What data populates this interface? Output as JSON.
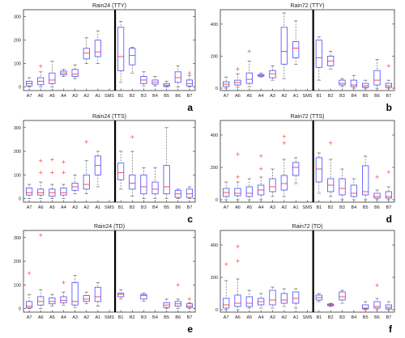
{
  "chart_data": [
    {
      "type": "box",
      "title": "Rain24 (TTY)",
      "panel_label": "a",
      "yticks": [
        0,
        100,
        200,
        300
      ],
      "ylim": [
        -15,
        330
      ],
      "categories": [
        "A7",
        "A6",
        "A5",
        "A4",
        "A3",
        "A2",
        "A1",
        "SMS",
        "B1",
        "B2",
        "B3",
        "B4",
        "B5",
        "B6",
        "B7"
      ],
      "divider_after": "SMS",
      "boxes": [
        {
          "cat": "A7",
          "min": 0,
          "q1": 5,
          "med": 15,
          "q3": 25,
          "max": 40,
          "outliers": []
        },
        {
          "cat": "A6",
          "min": 0,
          "q1": 10,
          "med": 25,
          "q3": 40,
          "max": 65,
          "outliers": [
            90
          ]
        },
        {
          "cat": "A5",
          "min": 0,
          "q1": 15,
          "med": 30,
          "q3": 60,
          "max": 110,
          "outliers": []
        },
        {
          "cat": "A4",
          "min": 45,
          "q1": 52,
          "med": 60,
          "q3": 68,
          "max": 75,
          "outliers": []
        },
        {
          "cat": "A3",
          "min": 35,
          "q1": 45,
          "med": 55,
          "q3": 75,
          "max": 95,
          "outliers": []
        },
        {
          "cat": "A2",
          "min": 100,
          "q1": 120,
          "med": 145,
          "q3": 165,
          "max": 210,
          "outliers": []
        },
        {
          "cat": "A1",
          "min": 100,
          "q1": 130,
          "med": 150,
          "q3": 200,
          "max": 240,
          "outliers": []
        },
        null,
        {
          "cat": "B1",
          "min": 20,
          "q1": 70,
          "med": 130,
          "q3": 255,
          "max": 280,
          "outliers": []
        },
        {
          "cat": "B2",
          "min": 60,
          "q1": 95,
          "med": 135,
          "q3": 165,
          "max": 170,
          "outliers": []
        },
        {
          "cat": "B3",
          "min": 5,
          "q1": 15,
          "med": 30,
          "q3": 45,
          "max": 65,
          "outliers": []
        },
        {
          "cat": "B4",
          "min": 5,
          "q1": 12,
          "med": 20,
          "q3": 30,
          "max": 45,
          "outliers": []
        },
        {
          "cat": "B5",
          "min": 0,
          "q1": 3,
          "med": 8,
          "q3": 15,
          "max": 25,
          "outliers": []
        },
        {
          "cat": "B6",
          "min": 0,
          "q1": 20,
          "med": 40,
          "q3": 65,
          "max": 90,
          "outliers": []
        },
        {
          "cat": "B7",
          "min": 0,
          "q1": 5,
          "med": 15,
          "q3": 30,
          "max": 50,
          "outliers": [
            60
          ]
        }
      ]
    },
    {
      "type": "box",
      "title": "Rain72 (TTY)",
      "panel_label": "b",
      "yticks": [
        0,
        200,
        400
      ],
      "ylim": [
        -15,
        490
      ],
      "categories": [
        "A7",
        "A6",
        "A5",
        "A4",
        "A3",
        "A2",
        "A1",
        "SMS",
        "B1",
        "B2",
        "B3",
        "B4",
        "B5",
        "B6",
        "B7"
      ],
      "divider_after": "SMS",
      "boxes": [
        {
          "cat": "A7",
          "min": 0,
          "q1": 10,
          "med": 25,
          "q3": 40,
          "max": 70,
          "outliers": []
        },
        {
          "cat": "A6",
          "min": 5,
          "q1": 20,
          "med": 35,
          "q3": 50,
          "max": 90,
          "outliers": [
            120
          ]
        },
        {
          "cat": "A5",
          "min": 10,
          "q1": 30,
          "med": 55,
          "q3": 95,
          "max": 170,
          "outliers": [
            230
          ]
        },
        {
          "cat": "A4",
          "min": 70,
          "q1": 75,
          "med": 80,
          "q3": 85,
          "max": 95,
          "outliers": []
        },
        {
          "cat": "A3",
          "min": 50,
          "q1": 65,
          "med": 90,
          "q3": 110,
          "max": 140,
          "outliers": []
        },
        {
          "cat": "A2",
          "min": 60,
          "q1": 150,
          "med": 230,
          "q3": 380,
          "max": 470,
          "outliers": []
        },
        {
          "cat": "A1",
          "min": 150,
          "q1": 190,
          "med": 250,
          "q3": 290,
          "max": 420,
          "outliers": []
        },
        null,
        {
          "cat": "B1",
          "min": 50,
          "q1": 130,
          "med": 190,
          "q3": 300,
          "max": 320,
          "outliers": []
        },
        {
          "cat": "B2",
          "min": 120,
          "q1": 140,
          "med": 170,
          "q3": 200,
          "max": 230,
          "outliers": []
        },
        {
          "cat": "B3",
          "min": 10,
          "q1": 20,
          "med": 30,
          "q3": 50,
          "max": 60,
          "outliers": []
        },
        {
          "cat": "B4",
          "min": 0,
          "q1": 10,
          "med": 20,
          "q3": 50,
          "max": 80,
          "outliers": []
        },
        {
          "cat": "B5",
          "min": 0,
          "q1": 5,
          "med": 15,
          "q3": 30,
          "max": 50,
          "outliers": []
        },
        {
          "cat": "B6",
          "min": 0,
          "q1": 20,
          "med": 50,
          "q3": 110,
          "max": 180,
          "outliers": []
        },
        {
          "cat": "B7",
          "min": 0,
          "q1": 5,
          "med": 15,
          "q3": 30,
          "max": 50,
          "outliers": [
            140
          ]
        }
      ]
    },
    {
      "type": "box",
      "title": "Rain24 (TTS)",
      "panel_label": "c",
      "yticks": [
        0,
        100,
        200,
        300
      ],
      "ylim": [
        -15,
        330
      ],
      "categories": [
        "A7",
        "A6",
        "A5",
        "A4",
        "A3",
        "A2",
        "A1",
        "SMS",
        "B1",
        "B2",
        "B3",
        "B4",
        "B5",
        "B6",
        "B7"
      ],
      "divider_after": "SMS",
      "boxes": [
        {
          "cat": "A7",
          "min": 0,
          "q1": 15,
          "med": 25,
          "q3": 45,
          "max": 60,
          "outliers": []
        },
        {
          "cat": "A6",
          "min": 0,
          "q1": 15,
          "med": 25,
          "q3": 40,
          "max": 70,
          "outliers": [
            110,
            160
          ]
        },
        {
          "cat": "A5",
          "min": 0,
          "q1": 10,
          "med": 25,
          "q3": 40,
          "max": 60,
          "outliers": [
            110,
            165
          ]
        },
        {
          "cat": "A4",
          "min": 0,
          "q1": 15,
          "med": 25,
          "q3": 45,
          "max": 60,
          "outliers": [
            110,
            155
          ]
        },
        {
          "cat": "A3",
          "min": 20,
          "q1": 35,
          "med": 50,
          "q3": 65,
          "max": 100,
          "outliers": []
        },
        {
          "cat": "A2",
          "min": 20,
          "q1": 40,
          "med": 60,
          "q3": 100,
          "max": 160,
          "outliers": [
            240
          ]
        },
        {
          "cat": "A1",
          "min": 50,
          "q1": 100,
          "med": 140,
          "q3": 180,
          "max": 200,
          "outliers": []
        },
        null,
        {
          "cat": "B1",
          "min": 40,
          "q1": 80,
          "med": 110,
          "q3": 150,
          "max": 200,
          "outliers": []
        },
        {
          "cat": "B2",
          "min": 10,
          "q1": 40,
          "med": 65,
          "q3": 100,
          "max": 200,
          "outliers": [
            260
          ]
        },
        {
          "cat": "B3",
          "min": 0,
          "q1": 20,
          "med": 50,
          "q3": 100,
          "max": 130,
          "outliers": []
        },
        {
          "cat": "B4",
          "min": 0,
          "q1": 20,
          "med": 40,
          "q3": 70,
          "max": 130,
          "outliers": []
        },
        {
          "cat": "B5",
          "min": 0,
          "q1": 20,
          "med": 50,
          "q3": 140,
          "max": 300,
          "outliers": []
        },
        {
          "cat": "B6",
          "min": 0,
          "q1": 5,
          "med": 20,
          "q3": 35,
          "max": 40,
          "outliers": []
        },
        {
          "cat": "B7",
          "min": 0,
          "q1": 5,
          "med": 20,
          "q3": 40,
          "max": 50,
          "outliers": []
        }
      ]
    },
    {
      "type": "box",
      "title": "Rain72 (TTS)",
      "panel_label": "d",
      "yticks": [
        0,
        200,
        400
      ],
      "ylim": [
        -15,
        490
      ],
      "categories": [
        "A7",
        "A6",
        "A5",
        "A4",
        "A3",
        "A2",
        "A1",
        "SMS",
        "B1",
        "B2",
        "B3",
        "B4",
        "B5",
        "B6",
        "B7"
      ],
      "divider_after": "SMS",
      "boxes": [
        {
          "cat": "A7",
          "min": 0,
          "q1": 20,
          "med": 45,
          "q3": 70,
          "max": 110,
          "outliers": []
        },
        {
          "cat": "A6",
          "min": 0,
          "q1": 25,
          "med": 40,
          "q3": 70,
          "max": 110,
          "outliers": [
            140,
            280
          ]
        },
        {
          "cat": "A5",
          "min": 0,
          "q1": 20,
          "med": 40,
          "q3": 80,
          "max": 130,
          "outliers": []
        },
        {
          "cat": "A4",
          "min": 0,
          "q1": 30,
          "med": 60,
          "q3": 90,
          "max": 140,
          "outliers": [
            190,
            270
          ]
        },
        {
          "cat": "A3",
          "min": 20,
          "q1": 50,
          "med": 80,
          "q3": 130,
          "max": 190,
          "outliers": []
        },
        {
          "cat": "A2",
          "min": 20,
          "q1": 60,
          "med": 100,
          "q3": 150,
          "max": 250,
          "outliers": [
            350,
            390
          ]
        },
        {
          "cat": "A1",
          "min": 100,
          "q1": 150,
          "med": 200,
          "q3": 230,
          "max": 260,
          "outliers": []
        },
        null,
        {
          "cat": "B1",
          "min": 40,
          "q1": 110,
          "med": 190,
          "q3": 260,
          "max": 290,
          "outliers": []
        },
        {
          "cat": "B2",
          "min": 20,
          "q1": 50,
          "med": 90,
          "q3": 130,
          "max": 250,
          "outliers": [
            350
          ]
        },
        {
          "cat": "B3",
          "min": 0,
          "q1": 30,
          "med": 70,
          "q3": 130,
          "max": 190,
          "outliers": []
        },
        {
          "cat": "B4",
          "min": 0,
          "q1": 20,
          "med": 40,
          "q3": 90,
          "max": 130,
          "outliers": []
        },
        {
          "cat": "B5",
          "min": 0,
          "q1": 30,
          "med": 50,
          "q3": 210,
          "max": 270,
          "outliers": []
        },
        {
          "cat": "B6",
          "min": 0,
          "q1": 10,
          "med": 20,
          "q3": 40,
          "max": 60,
          "outliers": [
            140
          ]
        },
        {
          "cat": "B7",
          "min": 0,
          "q1": 10,
          "med": 20,
          "q3": 50,
          "max": 80,
          "outliers": [
            170
          ]
        }
      ]
    },
    {
      "type": "box",
      "title": "Rain24 (TD)",
      "panel_label": "e",
      "yticks": [
        0,
        100,
        200,
        300
      ],
      "ylim": [
        -15,
        330
      ],
      "categories": [
        "A7",
        "A6",
        "A5",
        "A4",
        "A3",
        "A2",
        "A1",
        "SMS",
        "B1",
        "B2",
        "B3",
        "B4",
        "B5",
        "B6",
        "B7"
      ],
      "divider_after": "SMS",
      "boxes": [
        {
          "cat": "A7",
          "min": 0,
          "q1": 3,
          "med": 10,
          "q3": 30,
          "max": 60,
          "outliers": [
            150
          ]
        },
        {
          "cat": "A6",
          "min": 0,
          "q1": 15,
          "med": 30,
          "q3": 50,
          "max": 80,
          "outliers": [
            310
          ]
        },
        {
          "cat": "A5",
          "min": 10,
          "q1": 20,
          "med": 30,
          "q3": 45,
          "max": 60,
          "outliers": []
        },
        {
          "cat": "A4",
          "min": 15,
          "q1": 25,
          "med": 35,
          "q3": 50,
          "max": 70,
          "outliers": [
            110
          ]
        },
        {
          "cat": "A3",
          "min": 5,
          "q1": 15,
          "med": 30,
          "q3": 110,
          "max": 140,
          "outliers": []
        },
        {
          "cat": "A2",
          "min": 20,
          "q1": 30,
          "med": 40,
          "q3": 55,
          "max": 70,
          "outliers": []
        },
        {
          "cat": "A1",
          "min": 10,
          "q1": 30,
          "med": 50,
          "q3": 90,
          "max": 110,
          "outliers": []
        },
        null,
        {
          "cat": "B1",
          "min": 40,
          "q1": 50,
          "med": 60,
          "q3": 65,
          "max": 80,
          "outliers": []
        },
        null,
        {
          "cat": "B3",
          "min": 30,
          "q1": 40,
          "med": 55,
          "q3": 60,
          "max": 65,
          "outliers": []
        },
        null,
        {
          "cat": "B5",
          "min": 0,
          "q1": 5,
          "med": 15,
          "q3": 25,
          "max": 40,
          "outliers": []
        },
        {
          "cat": "B6",
          "min": 0,
          "q1": 10,
          "med": 20,
          "q3": 30,
          "max": 40,
          "outliers": [
            100
          ]
        },
        {
          "cat": "B7",
          "min": 0,
          "q1": 5,
          "med": 10,
          "q3": 20,
          "max": 25,
          "outliers": [
            40
          ]
        }
      ]
    },
    {
      "type": "box",
      "title": "Rain72 (TD)",
      "panel_label": "f",
      "yticks": [
        0,
        200,
        400
      ],
      "ylim": [
        -15,
        490
      ],
      "categories": [
        "A7",
        "A6",
        "A5",
        "A4",
        "A3",
        "A2",
        "A1",
        "SMS",
        "B1",
        "B2",
        "B3",
        "B4",
        "B5",
        "B6",
        "B7"
      ],
      "divider_after": "SMS",
      "boxes": [
        {
          "cat": "A7",
          "min": 0,
          "q1": 10,
          "med": 30,
          "q3": 70,
          "max": 180,
          "outliers": [
            280
          ]
        },
        {
          "cat": "A6",
          "min": 0,
          "q1": 20,
          "med": 40,
          "q3": 90,
          "max": 190,
          "outliers": [
            300,
            390
          ]
        },
        {
          "cat": "A5",
          "min": 10,
          "q1": 20,
          "med": 40,
          "q3": 80,
          "max": 120,
          "outliers": []
        },
        {
          "cat": "A4",
          "min": 10,
          "q1": 30,
          "med": 50,
          "q3": 70,
          "max": 100,
          "outliers": []
        },
        {
          "cat": "A3",
          "min": 10,
          "q1": 30,
          "med": 60,
          "q3": 120,
          "max": 140,
          "outliers": []
        },
        {
          "cat": "A2",
          "min": 20,
          "q1": 40,
          "med": 60,
          "q3": 100,
          "max": 130,
          "outliers": []
        },
        {
          "cat": "A1",
          "min": 10,
          "q1": 40,
          "med": 70,
          "q3": 110,
          "max": 130,
          "outliers": []
        },
        null,
        {
          "cat": "B1",
          "min": 50,
          "q1": 60,
          "med": 75,
          "q3": 90,
          "max": 100,
          "outliers": []
        },
        {
          "cat": "B2",
          "min": 20,
          "q1": 25,
          "med": 30,
          "q3": 35,
          "max": 40,
          "outliers": []
        },
        {
          "cat": "B3",
          "min": 40,
          "q1": 60,
          "med": 80,
          "q3": 110,
          "max": 120,
          "outliers": []
        },
        null,
        {
          "cat": "B5",
          "min": 0,
          "q1": 5,
          "med": 10,
          "q3": 30,
          "max": 50,
          "outliers": []
        },
        {
          "cat": "B6",
          "min": 0,
          "q1": 10,
          "med": 20,
          "q3": 50,
          "max": 70,
          "outliers": [
            150
          ]
        },
        {
          "cat": "B7",
          "min": 0,
          "q1": 5,
          "med": 15,
          "q3": 30,
          "max": 50,
          "outliers": []
        }
      ]
    }
  ],
  "colors": {
    "box": "#4b4bff",
    "median": "#ff3b3b",
    "outlier": "#ff3b3b",
    "whisker": "#555555",
    "axis": "#333333",
    "divider": "#000000"
  }
}
